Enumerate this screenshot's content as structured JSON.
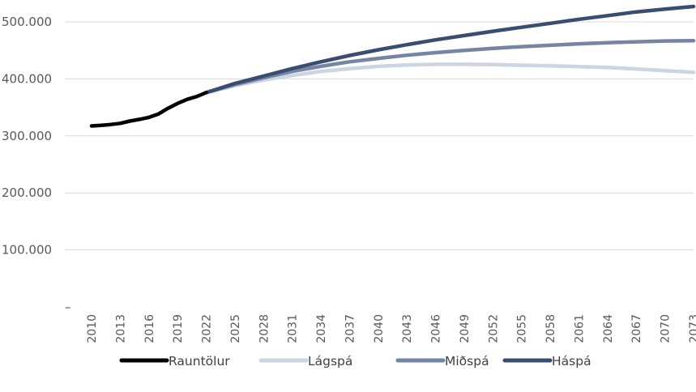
{
  "chart_data": {
    "type": "line",
    "title": "",
    "xlabel": "",
    "ylabel": "",
    "ylim": [
      0,
      500000
    ],
    "y_ticks": [
      {
        "value": 0,
        "label": "–"
      },
      {
        "value": 100000,
        "label": "100.000"
      },
      {
        "value": 200000,
        "label": "200.000"
      },
      {
        "value": 300000,
        "label": "300.000"
      },
      {
        "value": 400000,
        "label": "400.000"
      },
      {
        "value": 500000,
        "label": "500.000"
      }
    ],
    "x_range": [
      2010,
      2073
    ],
    "x_tick_labels": [
      "2010",
      "2013",
      "2016",
      "2019",
      "2022",
      "2025",
      "2028",
      "2031",
      "2034",
      "2037",
      "2040",
      "2043",
      "2046",
      "2049",
      "2052",
      "2055",
      "2058",
      "2061",
      "2064",
      "2067",
      "2070",
      "2073"
    ],
    "grid": true,
    "legend_position": "bottom",
    "series": [
      {
        "name": "Rauntölur",
        "color": "#000000",
        "x": [
          2010,
          2011,
          2012,
          2013,
          2014,
          2015,
          2016,
          2017,
          2018,
          2019,
          2020,
          2021,
          2022
        ],
        "values": [
          317500,
          318500,
          320000,
          322000,
          326000,
          329000,
          332500,
          338500,
          348500,
          357000,
          364000,
          369000,
          376000
        ]
      },
      {
        "name": "Lágspá",
        "color": "#ccd5e2",
        "x": [
          2022,
          2025,
          2028,
          2031,
          2034,
          2037,
          2040,
          2043,
          2046,
          2049,
          2052,
          2055,
          2058,
          2061,
          2064,
          2067,
          2070,
          2073
        ],
        "values": [
          376000,
          388000,
          398000,
          406000,
          413000,
          418000,
          422000,
          424500,
          425500,
          425500,
          425000,
          424000,
          423000,
          421500,
          420000,
          417500,
          414500,
          411500
        ]
      },
      {
        "name": "Miðspá",
        "color": "#7585a3",
        "x": [
          2022,
          2025,
          2028,
          2031,
          2034,
          2037,
          2040,
          2043,
          2046,
          2049,
          2052,
          2055,
          2058,
          2061,
          2064,
          2067,
          2070,
          2073
        ],
        "values": [
          376000,
          390000,
          402000,
          413000,
          422000,
          430000,
          436000,
          441500,
          446000,
          450000,
          453500,
          456500,
          459000,
          461500,
          463500,
          465000,
          466500,
          467000
        ]
      },
      {
        "name": "Háspá",
        "color": "#3a4d70",
        "x": [
          2022,
          2025,
          2028,
          2031,
          2034,
          2037,
          2040,
          2043,
          2046,
          2049,
          2052,
          2055,
          2058,
          2061,
          2064,
          2067,
          2070,
          2073
        ],
        "values": [
          376000,
          392000,
          405000,
          418000,
          430000,
          441000,
          451000,
          460000,
          468500,
          476000,
          483500,
          490500,
          497500,
          504500,
          511000,
          517500,
          522500,
          527000
        ]
      }
    ],
    "legend_order": [
      "Rauntölur",
      "Lágspá",
      "Miðspá",
      "Háspá"
    ]
  }
}
